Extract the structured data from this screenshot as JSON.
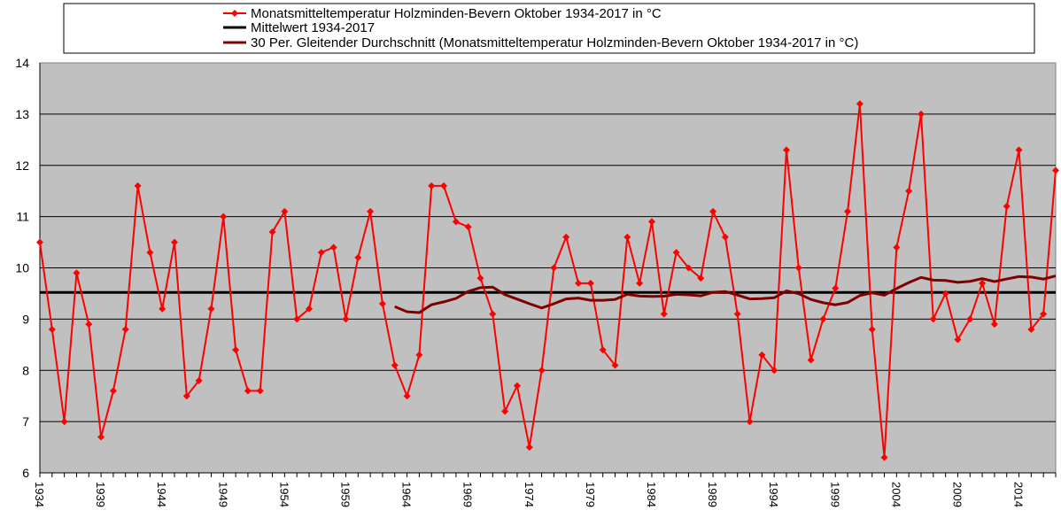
{
  "chart_data": {
    "type": "line",
    "title": "",
    "xlabel": "",
    "ylabel": "",
    "ylim": [
      6,
      14
    ],
    "yticks": [
      6,
      7,
      8,
      9,
      10,
      11,
      12,
      13,
      14
    ],
    "x_start": 1934,
    "x_end": 2017,
    "xtick_label_step": 5,
    "grid": true,
    "legend_placement": "top",
    "colors": {
      "plot_bg": "#c0c0c0",
      "series": "#ff0000",
      "mean": "#000000",
      "moving_avg": "#800000"
    },
    "series": [
      {
        "name": "Monatsmitteltemperatur Holzminden-Bevern Oktober 1934-2017 in °C",
        "values": [
          10.5,
          8.8,
          7.0,
          9.9,
          8.9,
          6.7,
          7.6,
          8.8,
          11.6,
          10.3,
          9.2,
          10.5,
          7.5,
          7.8,
          9.2,
          11.0,
          8.4,
          7.6,
          7.6,
          10.7,
          11.1,
          9.0,
          9.2,
          10.3,
          10.4,
          9.0,
          10.2,
          11.1,
          9.3,
          8.1,
          7.5,
          8.3,
          11.6,
          11.6,
          10.9,
          10.8,
          9.8,
          9.1,
          7.2,
          7.7,
          6.5,
          8.0,
          10.0,
          10.6,
          9.7,
          9.7,
          8.4,
          8.1,
          10.6,
          9.7,
          10.9,
          9.1,
          10.3,
          10.0,
          9.8,
          11.1,
          10.6,
          9.1,
          7.0,
          8.3,
          8.0,
          12.3,
          10.0,
          8.2,
          9.0,
          9.6,
          11.1,
          13.2,
          8.8,
          6.3,
          10.4,
          11.5,
          13.0,
          9.0,
          9.5,
          8.6,
          9.0,
          9.7,
          8.9,
          11.2,
          12.3,
          8.8,
          9.1,
          11.9
        ]
      },
      {
        "name": "Mittelwert 1934-2017",
        "value": 9.52
      },
      {
        "name": "30 Per. Gleitender Durchschnitt (Monatsmitteltemperatur Holzminden-Bevern Oktober 1934-2017 in °C)",
        "period": 30
      }
    ]
  }
}
